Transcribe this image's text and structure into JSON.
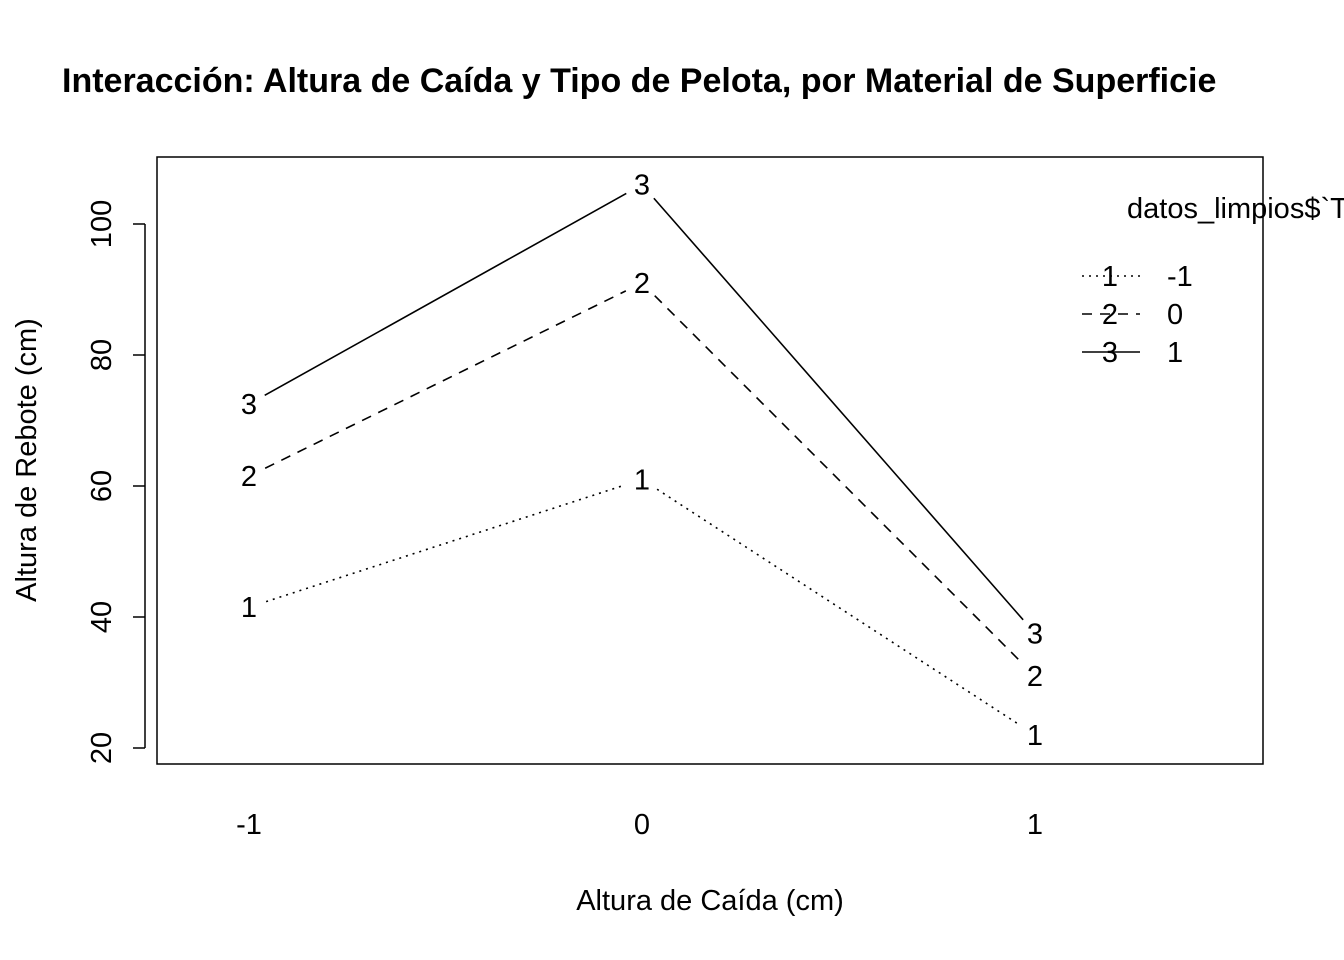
{
  "chart_data": {
    "type": "line",
    "title": "Interacción: Altura de Caída y Tipo de Pelota, por Material de Superficie",
    "xlabel": "Altura de Caída (cm)",
    "ylabel": "Altura de Rebote (cm)",
    "categories": [
      "-1",
      "0",
      "1"
    ],
    "yticks": [
      20,
      40,
      60,
      80,
      100
    ],
    "ylim": [
      20,
      110
    ],
    "series": [
      {
        "name": "-1",
        "marker": "1",
        "dash": "dotted",
        "values": [
          41.5,
          61.0,
          22.0
        ]
      },
      {
        "name": "0",
        "marker": "2",
        "dash": "dashed",
        "values": [
          61.5,
          91.0,
          31.0
        ]
      },
      {
        "name": "1",
        "marker": "3",
        "dash": "solid",
        "values": [
          72.5,
          106.0,
          37.5
        ]
      }
    ],
    "legend": {
      "title": "datos_limpios$`Tipo de Pelota`",
      "position": "top-right"
    },
    "grid": false
  }
}
